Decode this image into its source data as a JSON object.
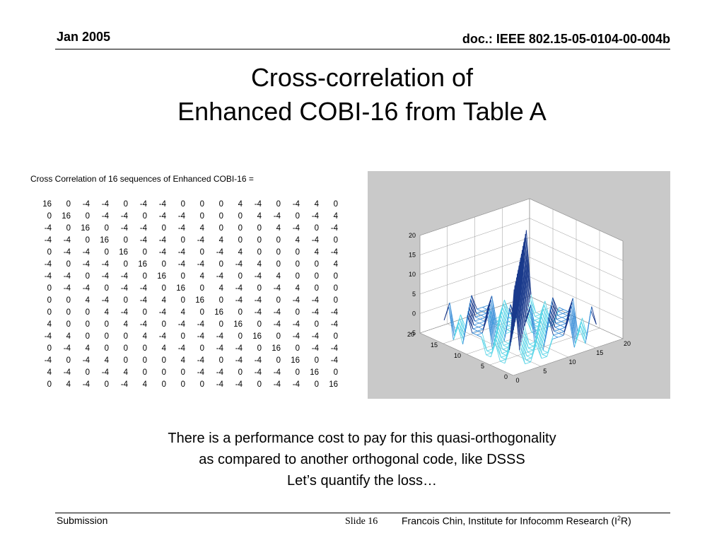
{
  "header": {
    "date": "Jan 2005",
    "doc_id": "doc.: IEEE 802.15-05-0104-00-004b"
  },
  "title": {
    "line1": "Cross-correlation of",
    "line2": "Enhanced COBI-16 from Table A"
  },
  "matrix": {
    "caption": "Cross Correlation of 16 sequences of Enhanced COBI-16 =",
    "rows": [
      [
        16,
        0,
        -4,
        -4,
        0,
        -4,
        -4,
        0,
        0,
        0,
        4,
        -4,
        0,
        -4,
        4,
        0
      ],
      [
        0,
        16,
        0,
        -4,
        -4,
        0,
        -4,
        -4,
        0,
        0,
        0,
        4,
        -4,
        0,
        -4,
        4
      ],
      [
        -4,
        0,
        16,
        0,
        -4,
        -4,
        0,
        -4,
        4,
        0,
        0,
        0,
        4,
        -4,
        0,
        -4
      ],
      [
        -4,
        -4,
        0,
        16,
        0,
        -4,
        -4,
        0,
        -4,
        4,
        0,
        0,
        0,
        4,
        -4,
        0
      ],
      [
        0,
        -4,
        -4,
        0,
        16,
        0,
        -4,
        -4,
        0,
        -4,
        4,
        0,
        0,
        0,
        4,
        -4
      ],
      [
        -4,
        0,
        -4,
        -4,
        0,
        16,
        0,
        -4,
        -4,
        0,
        -4,
        4,
        0,
        0,
        0,
        4
      ],
      [
        -4,
        -4,
        0,
        -4,
        -4,
        0,
        16,
        0,
        4,
        -4,
        0,
        -4,
        4,
        0,
        0,
        0
      ],
      [
        0,
        -4,
        -4,
        0,
        -4,
        -4,
        0,
        16,
        0,
        4,
        -4,
        0,
        -4,
        4,
        0,
        0
      ],
      [
        0,
        0,
        4,
        -4,
        0,
        -4,
        4,
        0,
        16,
        0,
        -4,
        -4,
        0,
        -4,
        -4,
        0
      ],
      [
        0,
        0,
        0,
        4,
        -4,
        0,
        -4,
        4,
        0,
        16,
        0,
        -4,
        -4,
        0,
        -4,
        -4
      ],
      [
        4,
        0,
        0,
        0,
        4,
        -4,
        0,
        -4,
        -4,
        0,
        16,
        0,
        -4,
        -4,
        0,
        -4
      ],
      [
        -4,
        4,
        0,
        0,
        0,
        4,
        -4,
        0,
        -4,
        -4,
        0,
        16,
        0,
        -4,
        -4,
        0
      ],
      [
        0,
        -4,
        4,
        0,
        0,
        0,
        4,
        -4,
        0,
        -4,
        -4,
        0,
        16,
        0,
        -4,
        -4
      ],
      [
        -4,
        0,
        -4,
        4,
        0,
        0,
        0,
        4,
        -4,
        0,
        -4,
        -4,
        0,
        16,
        0,
        -4
      ],
      [
        4,
        -4,
        0,
        -4,
        4,
        0,
        0,
        0,
        -4,
        -4,
        0,
        -4,
        -4,
        0,
        16,
        0
      ],
      [
        0,
        4,
        -4,
        0,
        -4,
        4,
        0,
        0,
        0,
        -4,
        -4,
        0,
        -4,
        -4,
        0,
        16
      ]
    ]
  },
  "chart_data": {
    "type": "surface",
    "title": "",
    "zlim": [
      -5,
      20
    ],
    "xlim": [
      0,
      20
    ],
    "ylim": [
      0,
      20
    ],
    "z_ticks": [
      "20",
      "15",
      "10",
      "5",
      "0",
      "-5"
    ],
    "x_ticks": [
      "0",
      "5",
      "10",
      "15",
      "20"
    ],
    "y_ticks": [
      "0",
      "5",
      "10",
      "15",
      "20"
    ],
    "grid": true,
    "background_color": "#c9c9c9",
    "mesh_colors": [
      "#1a3a8c",
      "#3b8fd9",
      "#5fd6e8",
      "#b02a2a"
    ]
  },
  "body": {
    "line1": "There is a performance cost to pay for this quasi-orthogonality",
    "line2": "as compared to another orthogonal code, like DSSS",
    "line3": "Let’s quantify the loss…"
  },
  "footer": {
    "left": "Submission",
    "slide": "Slide 16",
    "author_pre": "Francois Chin, Institute for Infocomm Research (I",
    "author_sup": "2",
    "author_post": "R)"
  }
}
